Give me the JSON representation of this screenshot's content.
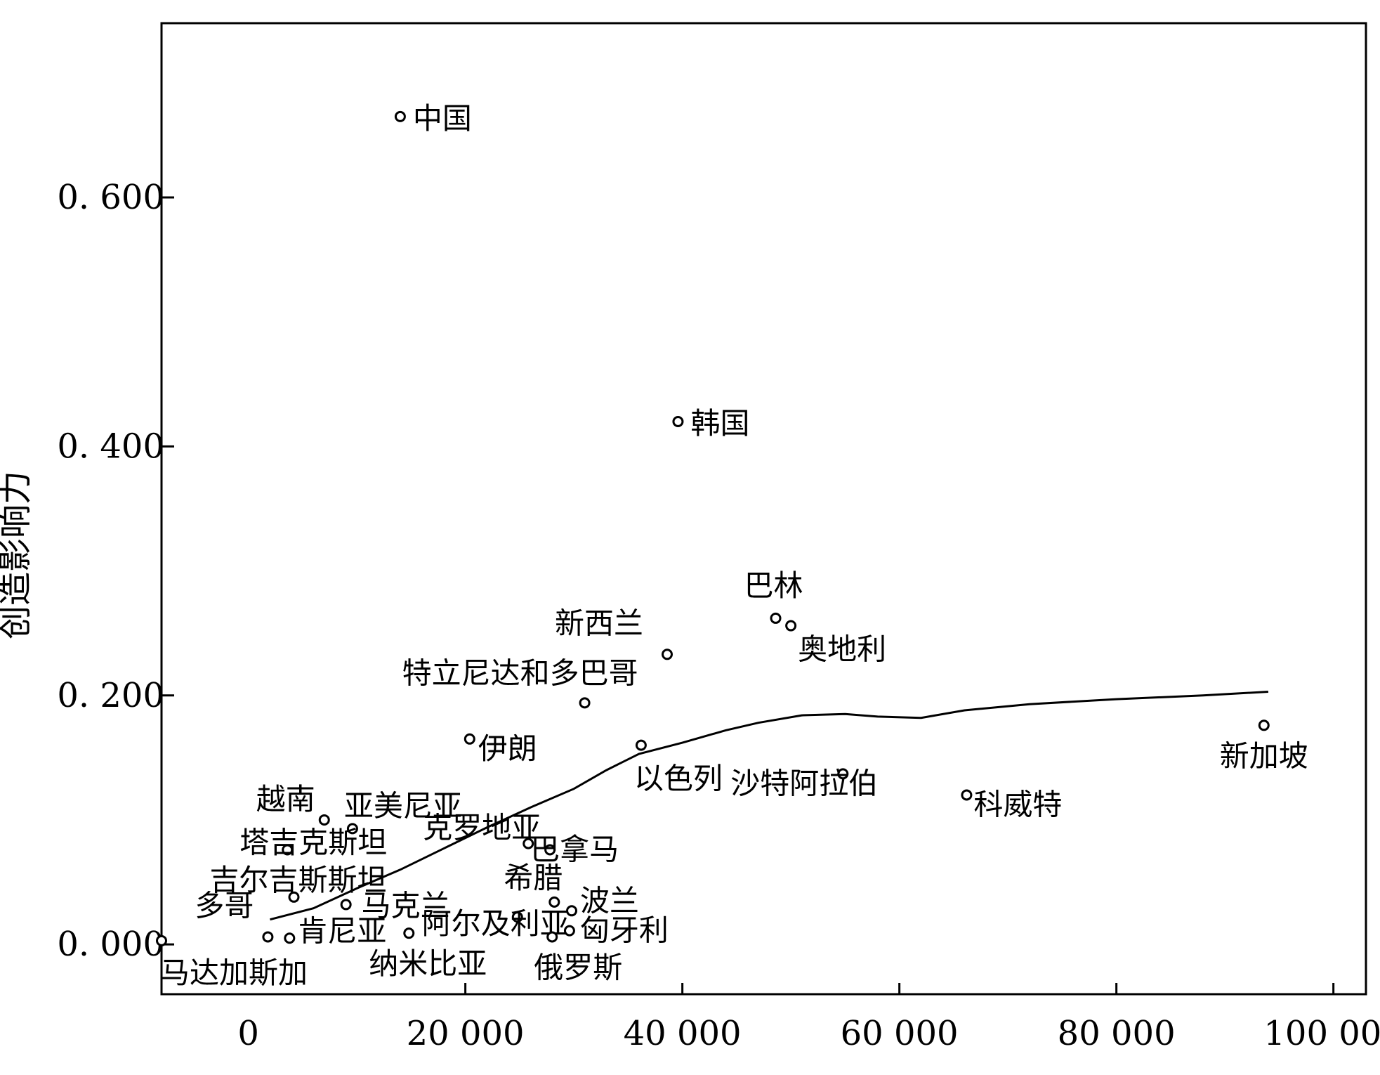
{
  "chart_data": {
    "type": "scatter",
    "title": "",
    "xlabel": "",
    "ylabel": "创造影响力",
    "xlim": [
      -8000,
      103000
    ],
    "ylim": [
      -0.04,
      0.74
    ],
    "xticks": [
      {
        "value": 0,
        "label": "0"
      },
      {
        "value": 20000,
        "label": "20 000"
      },
      {
        "value": 40000,
        "label": "40 000"
      },
      {
        "value": 60000,
        "label": "60 000"
      },
      {
        "value": 80000,
        "label": "80 000"
      },
      {
        "value": 100000,
        "label": "100 000"
      }
    ],
    "yticks": [
      {
        "value": 0,
        "label": "0. 000"
      },
      {
        "value": 0.2,
        "label": "0. 200"
      },
      {
        "value": 0.4,
        "label": "0. 400"
      },
      {
        "value": 0.6,
        "label": "0. 600"
      }
    ],
    "grid": false,
    "legend": "none",
    "points": [
      {
        "name": "中国",
        "x": 14000,
        "y": 0.665
      },
      {
        "name": "韩国",
        "x": 39600,
        "y": 0.42
      },
      {
        "name": "巴林",
        "x": 48600,
        "y": 0.262
      },
      {
        "name": "奥地利",
        "x": 50000,
        "y": 0.256
      },
      {
        "name": "新西兰",
        "x": 38600,
        "y": 0.233
      },
      {
        "name": "特立尼达和多巴哥",
        "x": 31000,
        "y": 0.194
      },
      {
        "name": "伊朗",
        "x": 20400,
        "y": 0.165
      },
      {
        "name": "以色列",
        "x": 36200,
        "y": 0.16
      },
      {
        "name": "新加坡",
        "x": 93600,
        "y": 0.176
      },
      {
        "name": "沙特阿拉伯",
        "x": 54800,
        "y": 0.137
      },
      {
        "name": "科威特",
        "x": 66200,
        "y": 0.12
      },
      {
        "name": "越南",
        "x": 7000,
        "y": 0.1
      },
      {
        "name": "亚美尼亚",
        "x": 9600,
        "y": 0.093
      },
      {
        "name": "塔吉克斯坦",
        "x": 3600,
        "y": 0.076
      },
      {
        "name": "克罗地亚",
        "x": 25800,
        "y": 0.081
      },
      {
        "name": "巴拿马",
        "x": 27800,
        "y": 0.076
      },
      {
        "name": "吉尔吉斯斯坦",
        "x": 4200,
        "y": 0.038
      },
      {
        "name": "希腊",
        "x": 28200,
        "y": 0.034
      },
      {
        "name": "马克兰",
        "x": 9000,
        "y": 0.032
      },
      {
        "name": "波兰",
        "x": 29800,
        "y": 0.027
      },
      {
        "name": "阿尔及利亚",
        "x": 24800,
        "y": 0.022
      },
      {
        "name": "匈牙利",
        "x": 29600,
        "y": 0.011
      },
      {
        "name": "纳米比亚",
        "x": 14800,
        "y": 0.009
      },
      {
        "name": "俄罗斯",
        "x": 28000,
        "y": 0.006
      },
      {
        "name": "肯尼亚",
        "x": 3800,
        "y": 0.005
      },
      {
        "name": "多哥",
        "x": 1800,
        "y": 0.006
      },
      {
        "name": "马达加斯加",
        "x": -8000,
        "y": 0.003
      }
    ],
    "trend_line": [
      {
        "x": 2000,
        "y": 0.02
      },
      {
        "x": 6000,
        "y": 0.029
      },
      {
        "x": 10000,
        "y": 0.045
      },
      {
        "x": 14000,
        "y": 0.06
      },
      {
        "x": 18000,
        "y": 0.077
      },
      {
        "x": 22000,
        "y": 0.094
      },
      {
        "x": 26000,
        "y": 0.11
      },
      {
        "x": 30000,
        "y": 0.125
      },
      {
        "x": 33000,
        "y": 0.14
      },
      {
        "x": 36000,
        "y": 0.153
      },
      {
        "x": 40000,
        "y": 0.162
      },
      {
        "x": 44000,
        "y": 0.172
      },
      {
        "x": 47000,
        "y": 0.178
      },
      {
        "x": 51000,
        "y": 0.184
      },
      {
        "x": 55000,
        "y": 0.185
      },
      {
        "x": 58000,
        "y": 0.183
      },
      {
        "x": 62000,
        "y": 0.182
      },
      {
        "x": 66000,
        "y": 0.188
      },
      {
        "x": 72000,
        "y": 0.193
      },
      {
        "x": 80000,
        "y": 0.197
      },
      {
        "x": 88000,
        "y": 0.2
      },
      {
        "x": 94000,
        "y": 0.203
      }
    ],
    "colors": {
      "marker": "#000000",
      "line": "#000000",
      "background": "#ffffff"
    }
  }
}
